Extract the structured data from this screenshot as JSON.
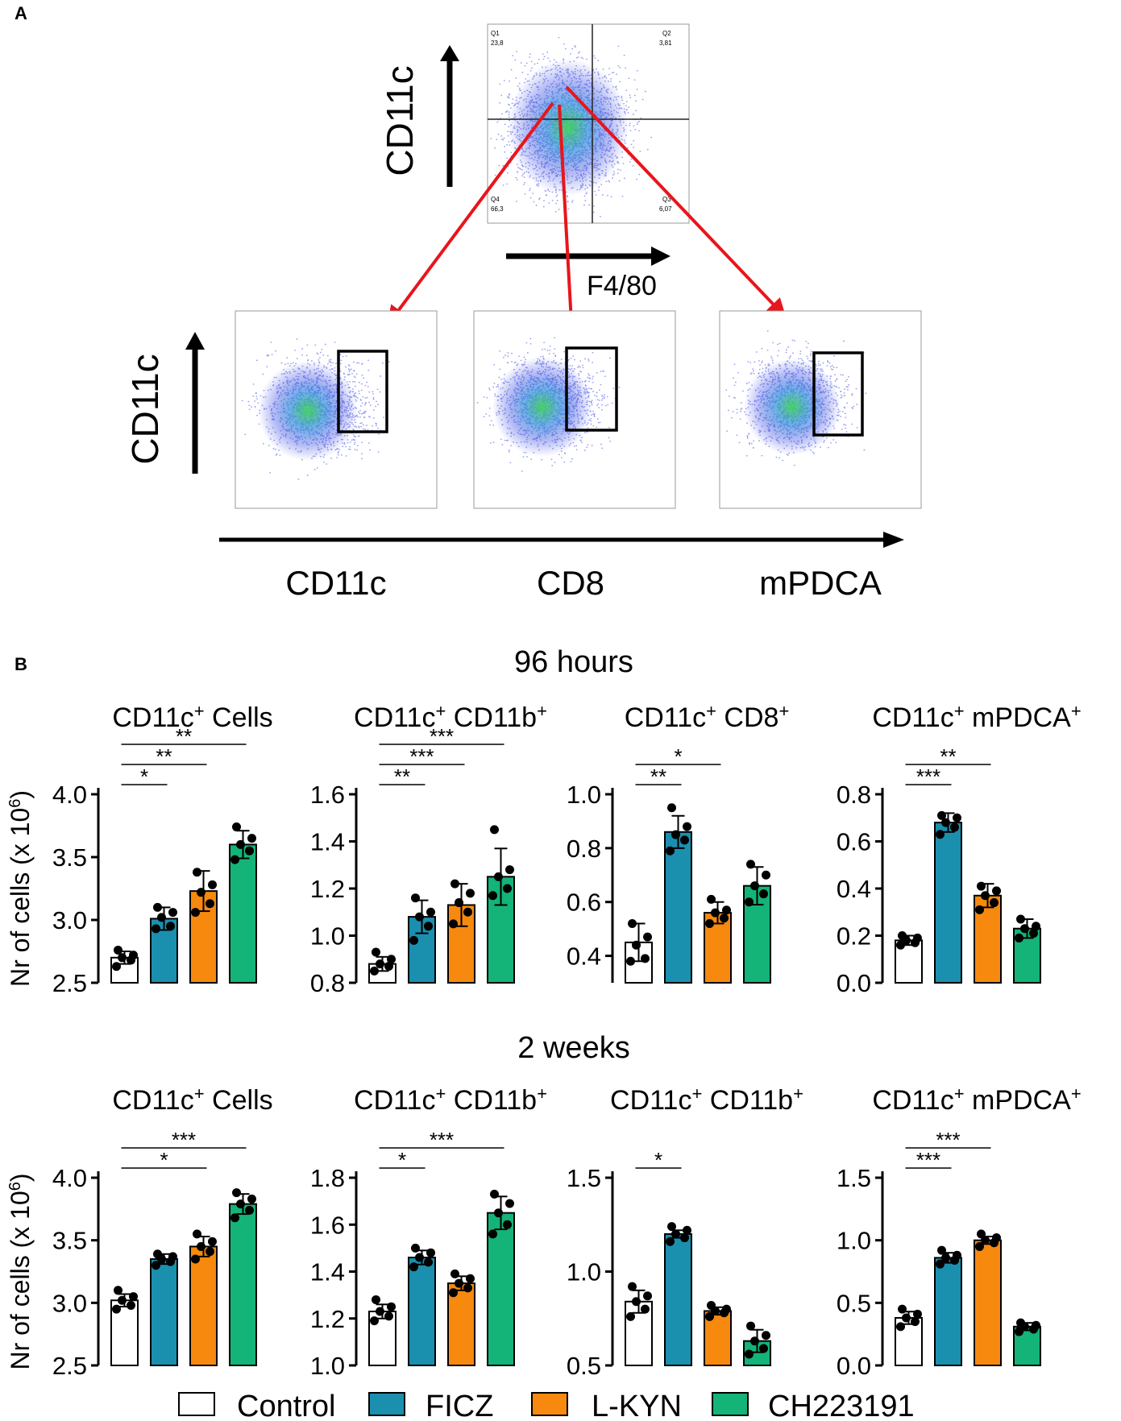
{
  "panel_a": {
    "label": "A",
    "top_plot": {
      "ylabel": "CD11c",
      "xlabel": "F4/80",
      "quadrants": [
        {
          "name": "Q1",
          "value": "23,8"
        },
        {
          "name": "Q2",
          "value": "3,81"
        },
        {
          "name": "Q3",
          "value": "6,07"
        },
        {
          "name": "Q4",
          "value": "66,3"
        }
      ]
    },
    "bottom": {
      "ylabel": "CD11c",
      "xlabels": [
        "CD11c",
        "CD8",
        "mPDCA"
      ]
    }
  },
  "panel_b": {
    "label": "B",
    "rows": [
      "96 hours",
      "2 weeks"
    ]
  },
  "legend": {
    "entries": [
      {
        "label": "Control",
        "color": "#ffffff"
      },
      {
        "label": "FICZ",
        "color": "#1b8fae"
      },
      {
        "label": "L-KYN",
        "color": "#f7890f"
      },
      {
        "label": "CH223191",
        "color": "#14b377"
      }
    ]
  },
  "chart_data": [
    {
      "type": "bar",
      "row": 0,
      "col": 0,
      "title": "CD11c",
      "title_sup": "+",
      "title_rest": " Cells",
      "title_sup2": "",
      "ylabel": "Nr of cells (x 10",
      "ylabel_sup": "6",
      "ylabel_end": ")",
      "categories": [
        "Control",
        "FICZ",
        "L-KYN",
        "CH223191"
      ],
      "values": [
        2.7,
        3.01,
        3.23,
        3.6
      ],
      "errors": [
        0.05,
        0.09,
        0.16,
        0.11
      ],
      "points": [
        [
          2.63,
          2.68,
          2.7,
          2.72,
          2.76
        ],
        [
          2.93,
          2.95,
          3.02,
          3.06,
          3.1
        ],
        [
          3.06,
          3.13,
          3.22,
          3.28,
          3.38
        ],
        [
          3.48,
          3.55,
          3.6,
          3.65,
          3.74
        ]
      ],
      "ylim": [
        2.5,
        4.0
      ],
      "yticks": [
        "2.5",
        "3.0",
        "3.5",
        "4.0"
      ],
      "sig": [
        {
          "a": 0,
          "b": 1,
          "label": "*"
        },
        {
          "a": 0,
          "b": 2,
          "label": "**"
        },
        {
          "a": 0,
          "b": 3,
          "label": "**"
        }
      ]
    },
    {
      "type": "bar",
      "row": 0,
      "col": 1,
      "title": "CD11c",
      "title_sup": "+",
      "title_rest": " CD11b",
      "title_sup2": "+",
      "ylabel": "",
      "ylabel_sup": "",
      "ylabel_end": "",
      "categories": [
        "Control",
        "FICZ",
        "L-KYN",
        "CH223191"
      ],
      "values": [
        0.88,
        1.08,
        1.13,
        1.25
      ],
      "errors": [
        0.03,
        0.07,
        0.09,
        0.12
      ],
      "points": [
        [
          0.85,
          0.87,
          0.88,
          0.9,
          0.93
        ],
        [
          0.98,
          1.04,
          1.08,
          1.1,
          1.16
        ],
        [
          1.05,
          1.1,
          1.14,
          1.18,
          1.22
        ],
        [
          1.17,
          1.2,
          1.25,
          1.28,
          1.45
        ]
      ],
      "ylim": [
        0.8,
        1.6
      ],
      "yticks": [
        "0.8",
        "1.0",
        "1.2",
        "1.4",
        "1.6"
      ],
      "sig": [
        {
          "a": 0,
          "b": 1,
          "label": "**"
        },
        {
          "a": 0,
          "b": 2,
          "label": "***"
        },
        {
          "a": 0,
          "b": 3,
          "label": "***"
        }
      ]
    },
    {
      "type": "bar",
      "row": 0,
      "col": 2,
      "title": "CD11c",
      "title_sup": "+",
      "title_rest": " CD8",
      "title_sup2": "+",
      "ylabel": "",
      "ylabel_sup": "",
      "ylabel_end": "",
      "categories": [
        "Control",
        "FICZ",
        "L-KYN",
        "CH223191"
      ],
      "values": [
        0.45,
        0.86,
        0.56,
        0.66
      ],
      "errors": [
        0.07,
        0.06,
        0.04,
        0.07
      ],
      "points": [
        [
          0.38,
          0.39,
          0.44,
          0.47,
          0.52
        ],
        [
          0.79,
          0.83,
          0.85,
          0.88,
          0.95
        ],
        [
          0.52,
          0.54,
          0.56,
          0.57,
          0.61
        ],
        [
          0.6,
          0.63,
          0.66,
          0.7,
          0.74
        ]
      ],
      "ylim": [
        0.3,
        1.0
      ],
      "yticks": [
        "0.4",
        "0.6",
        "0.8",
        "1.0"
      ],
      "sig": [
        {
          "a": 0,
          "b": 1,
          "label": "**"
        },
        {
          "a": 0,
          "b": 2,
          "label": "*"
        }
      ]
    },
    {
      "type": "bar",
      "row": 0,
      "col": 3,
      "title": "CD11c",
      "title_sup": "+",
      "title_rest": " mPDCA",
      "title_sup2": "+",
      "ylabel": "",
      "ylabel_sup": "",
      "ylabel_end": "",
      "categories": [
        "Control",
        "FICZ",
        "L-KYN",
        "CH223191"
      ],
      "values": [
        0.18,
        0.68,
        0.37,
        0.23
      ],
      "errors": [
        0.02,
        0.04,
        0.05,
        0.04
      ],
      "points": [
        [
          0.16,
          0.17,
          0.18,
          0.19,
          0.2
        ],
        [
          0.63,
          0.66,
          0.68,
          0.7,
          0.71
        ],
        [
          0.31,
          0.34,
          0.37,
          0.39,
          0.41
        ],
        [
          0.19,
          0.21,
          0.23,
          0.24,
          0.27
        ]
      ],
      "ylim": [
        0.0,
        0.8
      ],
      "yticks": [
        "0.0",
        "0.2",
        "0.4",
        "0.6",
        "0.8"
      ],
      "sig": [
        {
          "a": 0,
          "b": 1,
          "label": "***"
        },
        {
          "a": 0,
          "b": 2,
          "label": "**"
        }
      ]
    },
    {
      "type": "bar",
      "row": 1,
      "col": 0,
      "title": "CD11c",
      "title_sup": "+",
      "title_rest": " Cells",
      "title_sup2": "",
      "ylabel": "Nr of cells (x 10",
      "ylabel_sup": "6",
      "ylabel_end": ")",
      "categories": [
        "Control",
        "FICZ",
        "L-KYN",
        "CH223191"
      ],
      "values": [
        3.02,
        3.35,
        3.45,
        3.79
      ],
      "errors": [
        0.05,
        0.04,
        0.08,
        0.08
      ],
      "points": [
        [
          2.95,
          2.98,
          3.02,
          3.05,
          3.1
        ],
        [
          3.3,
          3.33,
          3.35,
          3.37,
          3.39
        ],
        [
          3.35,
          3.41,
          3.45,
          3.49,
          3.55
        ],
        [
          3.68,
          3.74,
          3.79,
          3.83,
          3.88
        ]
      ],
      "ylim": [
        2.5,
        4.0
      ],
      "yticks": [
        "2.5",
        "3.0",
        "3.5",
        "4.0"
      ],
      "sig": [
        {
          "a": 0,
          "b": 2,
          "label": "*"
        },
        {
          "a": 0,
          "b": 3,
          "label": "***"
        }
      ]
    },
    {
      "type": "bar",
      "row": 1,
      "col": 1,
      "title": "CD11c",
      "title_sup": "+",
      "title_rest": " CD11b",
      "title_sup2": "+",
      "ylabel": "",
      "ylabel_sup": "",
      "ylabel_end": "",
      "categories": [
        "Control",
        "FICZ",
        "L-KYN",
        "CH223191"
      ],
      "values": [
        1.23,
        1.46,
        1.35,
        1.65
      ],
      "errors": [
        0.03,
        0.03,
        0.03,
        0.07
      ],
      "points": [
        [
          1.19,
          1.21,
          1.23,
          1.25,
          1.28
        ],
        [
          1.42,
          1.44,
          1.46,
          1.48,
          1.5
        ],
        [
          1.31,
          1.33,
          1.35,
          1.37,
          1.39
        ],
        [
          1.56,
          1.6,
          1.65,
          1.69,
          1.73
        ]
      ],
      "ylim": [
        1.0,
        1.8
      ],
      "yticks": [
        "1.0",
        "1.2",
        "1.4",
        "1.6",
        "1.8"
      ],
      "sig": [
        {
          "a": 0,
          "b": 1,
          "label": "*"
        },
        {
          "a": 0,
          "b": 3,
          "label": "***"
        }
      ]
    },
    {
      "type": "bar",
      "row": 1,
      "col": 2,
      "title": "CD11c",
      "title_sup": "+",
      "title_rest": " CD11b",
      "title_sup2": "+",
      "ylabel": "",
      "ylabel_sup": "",
      "ylabel_end": "",
      "categories": [
        "Control",
        "FICZ",
        "L-KYN",
        "CH223191"
      ],
      "values": [
        0.84,
        1.2,
        0.79,
        0.63
      ],
      "errors": [
        0.06,
        0.02,
        0.02,
        0.06
      ],
      "points": [
        [
          0.76,
          0.8,
          0.84,
          0.87,
          0.92
        ],
        [
          1.16,
          1.18,
          1.2,
          1.22,
          1.24
        ],
        [
          0.76,
          0.78,
          0.79,
          0.8,
          0.82
        ],
        [
          0.56,
          0.59,
          0.63,
          0.66,
          0.71
        ]
      ],
      "ylim": [
        0.5,
        1.5
      ],
      "yticks": [
        "0.5",
        "1.0",
        "1.5"
      ],
      "sig": [
        {
          "a": 0,
          "b": 1,
          "label": "*"
        }
      ]
    },
    {
      "type": "bar",
      "row": 1,
      "col": 3,
      "title": "CD11c",
      "title_sup": "+",
      "title_rest": " mPDCA",
      "title_sup2": "+",
      "ylabel": "",
      "ylabel_sup": "",
      "ylabel_end": "",
      "categories": [
        "Control",
        "FICZ",
        "L-KYN",
        "CH223191"
      ],
      "values": [
        0.38,
        0.86,
        1.0,
        0.31
      ],
      "errors": [
        0.05,
        0.04,
        0.03,
        0.03
      ],
      "points": [
        [
          0.31,
          0.35,
          0.38,
          0.41,
          0.45
        ],
        [
          0.81,
          0.84,
          0.86,
          0.88,
          0.92
        ],
        [
          0.95,
          0.98,
          1.0,
          1.02,
          1.05
        ],
        [
          0.27,
          0.29,
          0.31,
          0.32,
          0.34
        ]
      ],
      "ylim": [
        0.0,
        1.5
      ],
      "yticks": [
        "0.0",
        "0.5",
        "1.0",
        "1.5"
      ],
      "sig": [
        {
          "a": 0,
          "b": 1,
          "label": "***"
        },
        {
          "a": 0,
          "b": 2,
          "label": "***"
        }
      ]
    }
  ]
}
